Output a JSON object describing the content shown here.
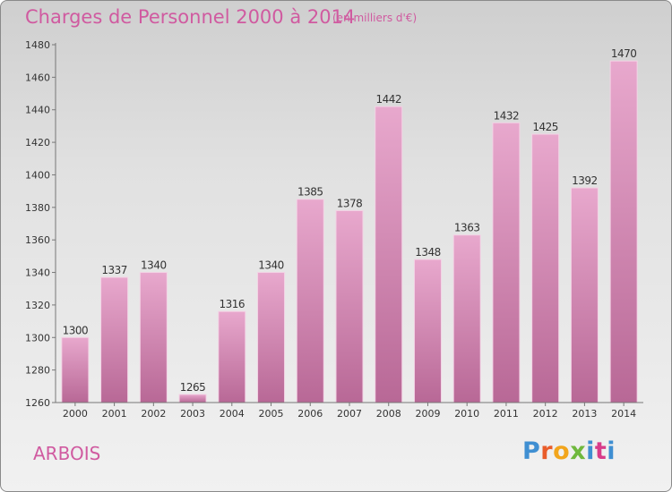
{
  "title": "Charges de Personnel 2000 à 2014",
  "subtitle": "(en milliers d'€)",
  "place": "ARBOIS",
  "logo": {
    "text": "Proxiti",
    "colors": [
      "#3f8fd2",
      "#e95c2a",
      "#f2a51c",
      "#6fb83d",
      "#3f8fd2",
      "#d83c8a"
    ]
  },
  "colors": {
    "bar_top": "#e8a8cd",
    "bar_bottom": "#b86896",
    "accent": "#d05aa0"
  },
  "chart_data": {
    "type": "bar",
    "title": "Charges de Personnel 2000 à 2014",
    "subtitle": "(en milliers d'€)",
    "categories": [
      "2000",
      "2001",
      "2002",
      "2003",
      "2004",
      "2005",
      "2006",
      "2007",
      "2008",
      "2009",
      "2010",
      "2011",
      "2012",
      "2013",
      "2014"
    ],
    "values": [
      1300,
      1337,
      1340,
      1265,
      1316,
      1340,
      1385,
      1378,
      1442,
      1348,
      1363,
      1432,
      1425,
      1392,
      1470
    ],
    "ylim": [
      1260,
      1480
    ],
    "yticks": [
      1260,
      1280,
      1300,
      1320,
      1340,
      1360,
      1380,
      1400,
      1420,
      1440,
      1460,
      1480
    ],
    "grid": false,
    "legend": "none"
  }
}
